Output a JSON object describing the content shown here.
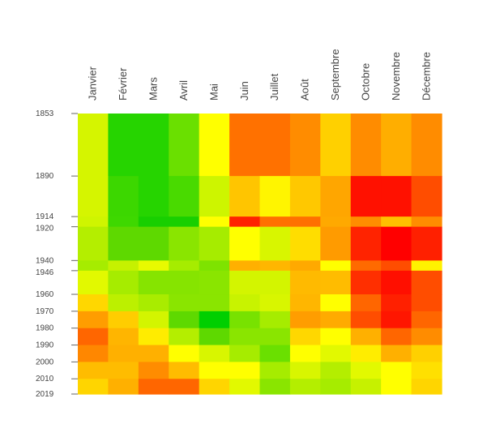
{
  "chart_data": {
    "type": "heatmap",
    "title": "",
    "xlabel": "",
    "ylabel": "",
    "columns": [
      "Janvier",
      "Février",
      "Mars",
      "Avril",
      "Mai",
      "Juin",
      "Juillet",
      "Août",
      "Septembre",
      "Octobre",
      "Novembre",
      "Décembre"
    ],
    "boundaries": [
      1853,
      1890,
      1914,
      1920,
      1940,
      1946,
      1960,
      1970,
      1980,
      1990,
      2000,
      2010,
      2019
    ],
    "tick_labels": [
      "1853",
      "1890",
      "1914",
      "1920",
      "1940",
      "1946",
      "1960",
      "1970",
      "1980",
      "1990",
      "2000",
      "2010",
      "2019"
    ],
    "rows": [
      {
        "from": 1853,
        "to": 1890,
        "colors": [
          "#d5f500",
          "#26d400",
          "#26d400",
          "#6ae000",
          "#ffff00",
          "#ff7100",
          "#ff7100",
          "#ff8c00",
          "#ffd000",
          "#ff8c00",
          "#ffae00",
          "#ff8c00"
        ]
      },
      {
        "from": 1890,
        "to": 1914,
        "colors": [
          "#d5f500",
          "#3cd700",
          "#26d400",
          "#49da00",
          "#cdf500",
          "#ffc500",
          "#fff500",
          "#ffc800",
          "#ffa600",
          "#ff1100",
          "#ff1100",
          "#ff4d00"
        ]
      },
      {
        "from": 1914,
        "to": 1920,
        "colors": [
          "#cff500",
          "#3ed800",
          "#18cf00",
          "#18cf00",
          "#ffff00",
          "#ff2200",
          "#ff7000",
          "#ff7000",
          "#ffa900",
          "#ff8d00",
          "#ffc000",
          "#ff8d00"
        ]
      },
      {
        "from": 1920,
        "to": 1940,
        "colors": [
          "#b4ee00",
          "#5ed900",
          "#5ed900",
          "#8ae500",
          "#a6ec00",
          "#ffff00",
          "#d8f600",
          "#ffdd00",
          "#ff9b00",
          "#ff2300",
          "#ff0000",
          "#ff2000"
        ]
      },
      {
        "from": 1940,
        "to": 1946,
        "colors": [
          "#a6ec00",
          "#c6f100",
          "#e8fa00",
          "#a6ec00",
          "#7ee300",
          "#ffb000",
          "#ffb600",
          "#ffa900",
          "#ffff00",
          "#ff6a00",
          "#ff4d00",
          "#fff200"
        ]
      },
      {
        "from": 1946,
        "to": 1960,
        "colors": [
          "#e2f900",
          "#a6ec00",
          "#86e400",
          "#86e400",
          "#8ae500",
          "#d3f500",
          "#d3f500",
          "#ffba00",
          "#ffbc00",
          "#ff2f00",
          "#ff0f00",
          "#ff4d00"
        ]
      },
      {
        "from": 1960,
        "to": 1970,
        "colors": [
          "#ffd700",
          "#bcf000",
          "#a9ec00",
          "#8ae500",
          "#8ae500",
          "#c8f300",
          "#d8f600",
          "#ffb600",
          "#ffff00",
          "#ff6600",
          "#ff2000",
          "#ff4d00"
        ]
      },
      {
        "from": 1970,
        "to": 1980,
        "colors": [
          "#ff9d00",
          "#ffcd00",
          "#d3f500",
          "#5ed900",
          "#00cf00",
          "#78e200",
          "#a6ec00",
          "#ff9d00",
          "#ffab00",
          "#ff4d00",
          "#ff1600",
          "#ff6600"
        ]
      },
      {
        "from": 1980,
        "to": 1990,
        "colors": [
          "#ff6600",
          "#ffb500",
          "#ffec00",
          "#b4ee00",
          "#5ed900",
          "#8ae500",
          "#8ae500",
          "#ffd700",
          "#ffff00",
          "#ffb000",
          "#ff6600",
          "#ff8c00"
        ]
      },
      {
        "from": 1990,
        "to": 2000,
        "colors": [
          "#ff8700",
          "#ffb000",
          "#ffb000",
          "#ffff00",
          "#d8f600",
          "#a6ec00",
          "#6ae000",
          "#ffff00",
          "#e2f900",
          "#ffed00",
          "#ffb000",
          "#ffd000"
        ]
      },
      {
        "from": 2000,
        "to": 2010,
        "colors": [
          "#ffbc00",
          "#ffbc00",
          "#ff8c00",
          "#ffbc00",
          "#ffff00",
          "#ffff00",
          "#a6ec00",
          "#d8f600",
          "#b4ee00",
          "#e2f900",
          "#ffff00",
          "#ffe000"
        ]
      },
      {
        "from": 2010,
        "to": 2019,
        "colors": [
          "#ffd500",
          "#ffb000",
          "#ff6600",
          "#ff6600",
          "#ffd500",
          "#e2f900",
          "#8ae500",
          "#b4ee00",
          "#a6ec00",
          "#c6f100",
          "#ffff00",
          "#ffd500"
        ]
      }
    ]
  }
}
